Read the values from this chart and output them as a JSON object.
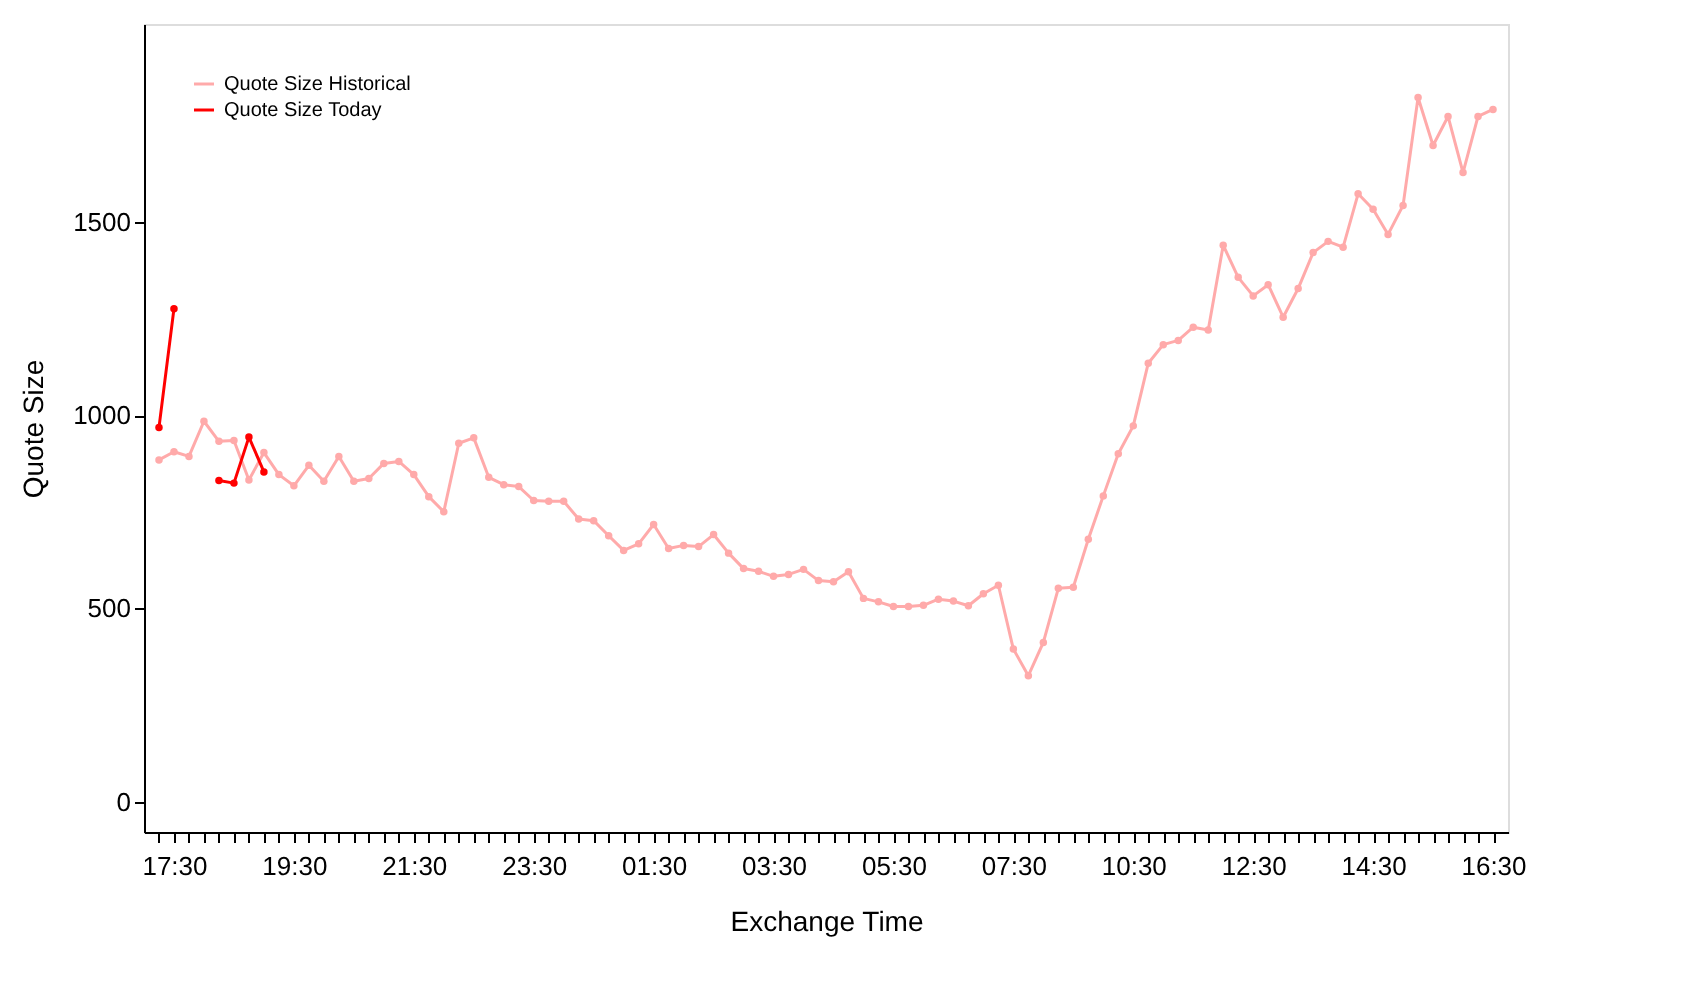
{
  "chart_data": {
    "type": "line",
    "xlabel": "Exchange Time",
    "ylabel": "Quote Size",
    "categories": [
      null,
      "17:30",
      null,
      null,
      null,
      null,
      null,
      null,
      null,
      "19:30",
      null,
      null,
      null,
      null,
      null,
      null,
      null,
      "21:30",
      null,
      null,
      null,
      null,
      null,
      null,
      null,
      "23:30",
      null,
      null,
      null,
      null,
      null,
      null,
      null,
      "01:30",
      null,
      null,
      null,
      null,
      null,
      null,
      null,
      "03:30",
      null,
      null,
      null,
      null,
      null,
      null,
      null,
      "05:30",
      null,
      null,
      null,
      null,
      null,
      null,
      null,
      "07:30",
      null,
      null,
      null,
      null,
      null,
      null,
      null,
      "10:30",
      null,
      null,
      null,
      null,
      null,
      null,
      null,
      "12:30",
      null,
      null,
      null,
      null,
      null,
      null,
      null,
      "14:30",
      null,
      null,
      null,
      null,
      null,
      null,
      null,
      "16:30"
    ],
    "ylim": [
      -78,
      2011
    ],
    "yticks": [
      0,
      500,
      1000,
      1500
    ],
    "grid": false,
    "legend": "top left",
    "marker": "circle",
    "line_style": "solid",
    "series": [
      {
        "name": "Quote Size Historical",
        "color": "#ffaaaa",
        "values": [
          884,
          905,
          893,
          984,
          932,
          934,
          832,
          903,
          846,
          817,
          870,
          829,
          893,
          829,
          836,
          875,
          880,
          846,
          789,
          750,
          927,
          941,
          839,
          820,
          815,
          779,
          777,
          777,
          731,
          727,
          688,
          650,
          667,
          717,
          655,
          663,
          660,
          691,
          643,
          603,
          596,
          583,
          588,
          601,
          572,
          569,
          595,
          526,
          517,
          505,
          505,
          508,
          524,
          519,
          507,
          538,
          560,
          395,
          326,
          412,
          552,
          555,
          679,
          791,
          900,
          972,
          1134,
          1182,
          1193,
          1227,
          1220,
          1439,
          1356,
          1308,
          1337,
          1253,
          1327,
          1420,
          1449,
          1434,
          1572,
          1532,
          1467,
          1542,
          1821,
          1697,
          1772,
          1627,
          1772,
          1790
        ]
      },
      {
        "name": "Quote Size Today",
        "color": "#ff0000",
        "values": [
          968,
          1275,
          null,
          null,
          831,
          824,
          943,
          853,
          null,
          null,
          null,
          null,
          null,
          null,
          null,
          null,
          null,
          null,
          null,
          null,
          null,
          null,
          null,
          null,
          null,
          null,
          null,
          null,
          null,
          null,
          null,
          null,
          null,
          null,
          null,
          null,
          null,
          null,
          null,
          null,
          null,
          null,
          null,
          null,
          null,
          null,
          null,
          null,
          null,
          null,
          null,
          null,
          null,
          null,
          null,
          null,
          null,
          null,
          null,
          null,
          null,
          null,
          null,
          null,
          null,
          null,
          null,
          null,
          null,
          null,
          null,
          null,
          null,
          null,
          null,
          null,
          null,
          null,
          null,
          null,
          null,
          null,
          null,
          null,
          null,
          null,
          null,
          null,
          null,
          null
        ]
      }
    ]
  }
}
